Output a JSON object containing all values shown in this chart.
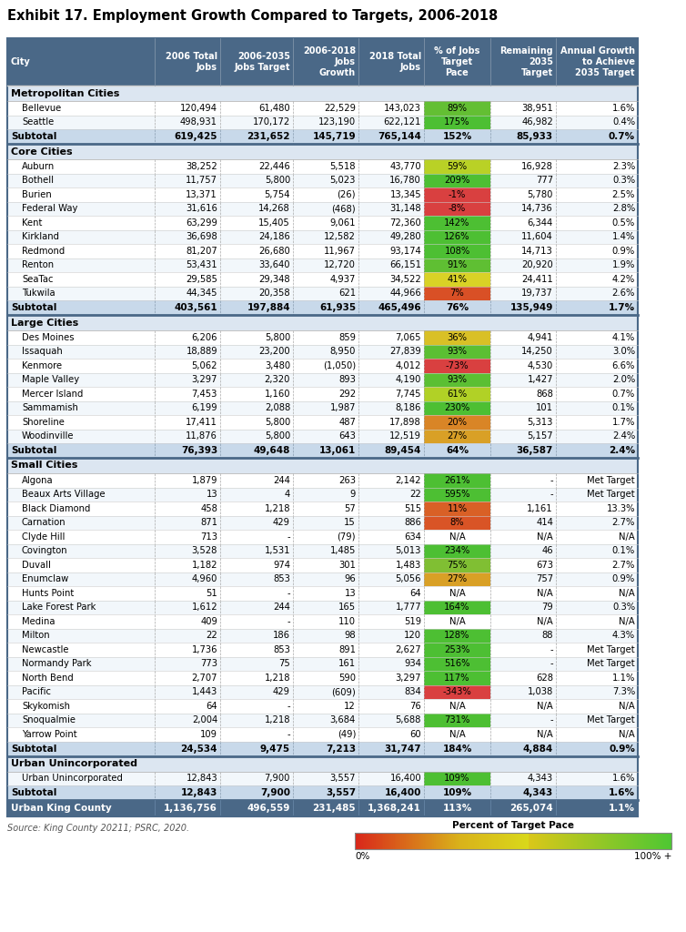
{
  "title": "Exhibit 17. Employment Growth Compared to Targets, 2006-2018",
  "source": "Source: King County 20211; PSRC, 2020.",
  "col_headers": [
    "City",
    "2006 Total\nJobs",
    "2006-2035\nJobs Target",
    "2006-2018\nJobs\nGrowth",
    "2018 Total\nJobs",
    "% of Jobs\nTarget\nPace",
    "Remaining\n2035\nTarget",
    "Annual Growth\nto Achieve\n2035 Target"
  ],
  "sections": [
    {
      "name": "Metropolitan Cities",
      "rows": [
        [
          "Bellevue",
          "120,494",
          "61,480",
          "22,529",
          "143,023",
          "89%",
          "38,951",
          "1.6%",
          89
        ],
        [
          "Seattle",
          "498,931",
          "170,172",
          "123,190",
          "622,121",
          "175%",
          "46,982",
          "0.4%",
          175
        ]
      ],
      "subtotal": [
        "Subtotal",
        "619,425",
        "231,652",
        "145,719",
        "765,144",
        "152%",
        "85,933",
        "0.7%",
        152
      ]
    },
    {
      "name": "Core Cities",
      "rows": [
        [
          "Auburn",
          "38,252",
          "22,446",
          "5,518",
          "43,770",
          "59%",
          "16,928",
          "2.3%",
          59
        ],
        [
          "Bothell",
          "11,757",
          "5,800",
          "5,023",
          "16,780",
          "209%",
          "777",
          "0.3%",
          209
        ],
        [
          "Burien",
          "13,371",
          "5,754",
          "(26)",
          "13,345",
          "-1%",
          "5,780",
          "2.5%",
          -1
        ],
        [
          "Federal Way",
          "31,616",
          "14,268",
          "(468)",
          "31,148",
          "-8%",
          "14,736",
          "2.8%",
          -8
        ],
        [
          "Kent",
          "63,299",
          "15,405",
          "9,061",
          "72,360",
          "142%",
          "6,344",
          "0.5%",
          142
        ],
        [
          "Kirkland",
          "36,698",
          "24,186",
          "12,582",
          "49,280",
          "126%",
          "11,604",
          "1.4%",
          126
        ],
        [
          "Redmond",
          "81,207",
          "26,680",
          "11,967",
          "93,174",
          "108%",
          "14,713",
          "0.9%",
          108
        ],
        [
          "Renton",
          "53,431",
          "33,640",
          "12,720",
          "66,151",
          "91%",
          "20,920",
          "1.9%",
          91
        ],
        [
          "SeaTac",
          "29,585",
          "29,348",
          "4,937",
          "34,522",
          "41%",
          "24,411",
          "4.2%",
          41
        ],
        [
          "Tukwila",
          "44,345",
          "20,358",
          "621",
          "44,966",
          "7%",
          "19,737",
          "2.6%",
          7
        ]
      ],
      "subtotal": [
        "Subtotal",
        "403,561",
        "197,884",
        "61,935",
        "465,496",
        "76%",
        "135,949",
        "1.7%",
        76
      ]
    },
    {
      "name": "Large Cities",
      "rows": [
        [
          "Des Moines",
          "6,206",
          "5,800",
          "859",
          "7,065",
          "36%",
          "4,941",
          "4.1%",
          36
        ],
        [
          "Issaquah",
          "18,889",
          "23,200",
          "8,950",
          "27,839",
          "93%",
          "14,250",
          "3.0%",
          93
        ],
        [
          "Kenmore",
          "5,062",
          "3,480",
          "(1,050)",
          "4,012",
          "-73%",
          "4,530",
          "6.6%",
          -73
        ],
        [
          "Maple Valley",
          "3,297",
          "2,320",
          "893",
          "4,190",
          "93%",
          "1,427",
          "2.0%",
          93
        ],
        [
          "Mercer Island",
          "7,453",
          "1,160",
          "292",
          "7,745",
          "61%",
          "868",
          "0.7%",
          61
        ],
        [
          "Sammamish",
          "6,199",
          "2,088",
          "1,987",
          "8,186",
          "230%",
          "101",
          "0.1%",
          230
        ],
        [
          "Shoreline",
          "17,411",
          "5,800",
          "487",
          "17,898",
          "20%",
          "5,313",
          "1.7%",
          20
        ],
        [
          "Woodinville",
          "11,876",
          "5,800",
          "643",
          "12,519",
          "27%",
          "5,157",
          "2.4%",
          27
        ]
      ],
      "subtotal": [
        "Subtotal",
        "76,393",
        "49,648",
        "13,061",
        "89,454",
        "64%",
        "36,587",
        "2.4%",
        64
      ]
    },
    {
      "name": "Small Cities",
      "rows": [
        [
          "Algona",
          "1,879",
          "244",
          "263",
          "2,142",
          "261%",
          "-",
          "Met Target",
          261
        ],
        [
          "Beaux Arts Village",
          "13",
          "4",
          "9",
          "22",
          "595%",
          "-",
          "Met Target",
          595
        ],
        [
          "Black Diamond",
          "458",
          "1,218",
          "57",
          "515",
          "11%",
          "1,161",
          "13.3%",
          11
        ],
        [
          "Carnation",
          "871",
          "429",
          "15",
          "886",
          "8%",
          "414",
          "2.7%",
          8
        ],
        [
          "Clyde Hill",
          "713",
          "-",
          "(79)",
          "634",
          "N/A",
          "N/A",
          "N/A",
          -999
        ],
        [
          "Covington",
          "3,528",
          "1,531",
          "1,485",
          "5,013",
          "234%",
          "46",
          "0.1%",
          234
        ],
        [
          "Duvall",
          "1,182",
          "974",
          "301",
          "1,483",
          "75%",
          "673",
          "2.7%",
          75
        ],
        [
          "Enumclaw",
          "4,960",
          "853",
          "96",
          "5,056",
          "27%",
          "757",
          "0.9%",
          27
        ],
        [
          "Hunts Point",
          "51",
          "-",
          "13",
          "64",
          "N/A",
          "N/A",
          "N/A",
          -999
        ],
        [
          "Lake Forest Park",
          "1,612",
          "244",
          "165",
          "1,777",
          "164%",
          "79",
          "0.3%",
          164
        ],
        [
          "Medina",
          "409",
          "-",
          "110",
          "519",
          "N/A",
          "N/A",
          "N/A",
          -999
        ],
        [
          "Milton",
          "22",
          "186",
          "98",
          "120",
          "128%",
          "88",
          "4.3%",
          128
        ],
        [
          "Newcastle",
          "1,736",
          "853",
          "891",
          "2,627",
          "253%",
          "-",
          "Met Target",
          253
        ],
        [
          "Normandy Park",
          "773",
          "75",
          "161",
          "934",
          "516%",
          "-",
          "Met Target",
          516
        ],
        [
          "North Bend",
          "2,707",
          "1,218",
          "590",
          "3,297",
          "117%",
          "628",
          "1.1%",
          117
        ],
        [
          "Pacific",
          "1,443",
          "429",
          "(609)",
          "834",
          "-343%",
          "1,038",
          "7.3%",
          -343
        ],
        [
          "Skykomish",
          "64",
          "-",
          "12",
          "76",
          "N/A",
          "N/A",
          "N/A",
          -999
        ],
        [
          "Snoqualmie",
          "2,004",
          "1,218",
          "3,684",
          "5,688",
          "731%",
          "-",
          "Met Target",
          731
        ],
        [
          "Yarrow Point",
          "109",
          "-",
          "(49)",
          "60",
          "N/A",
          "N/A",
          "N/A",
          -999
        ]
      ],
      "subtotal": [
        "Subtotal",
        "24,534",
        "9,475",
        "7,213",
        "31,747",
        "184%",
        "4,884",
        "0.9%",
        184
      ]
    },
    {
      "name": "Urban Unincorporated",
      "rows": [
        [
          "Urban Unincorporated",
          "12,843",
          "7,900",
          "3,557",
          "16,400",
          "109%",
          "4,343",
          "1.6%",
          109
        ]
      ],
      "subtotal": [
        "Subtotal",
        "12,843",
        "7,900",
        "3,557",
        "16,400",
        "109%",
        "4,343",
        "1.6%",
        109
      ]
    }
  ],
  "total_row": [
    "Urban King County",
    "1,136,756",
    "496,559",
    "231,485",
    "1,368,241",
    "113%",
    "265,074",
    "1.1%",
    113
  ],
  "header_bg": "#4a6887",
  "header_fg": "#ffffff",
  "section_bg": "#dce6f1",
  "subtotal_bg": "#c8d9ea",
  "row_bg_even": "#f2f7fb",
  "row_bg_odd": "#ffffff",
  "total_bg": "#4a6887",
  "total_fg": "#ffffff"
}
